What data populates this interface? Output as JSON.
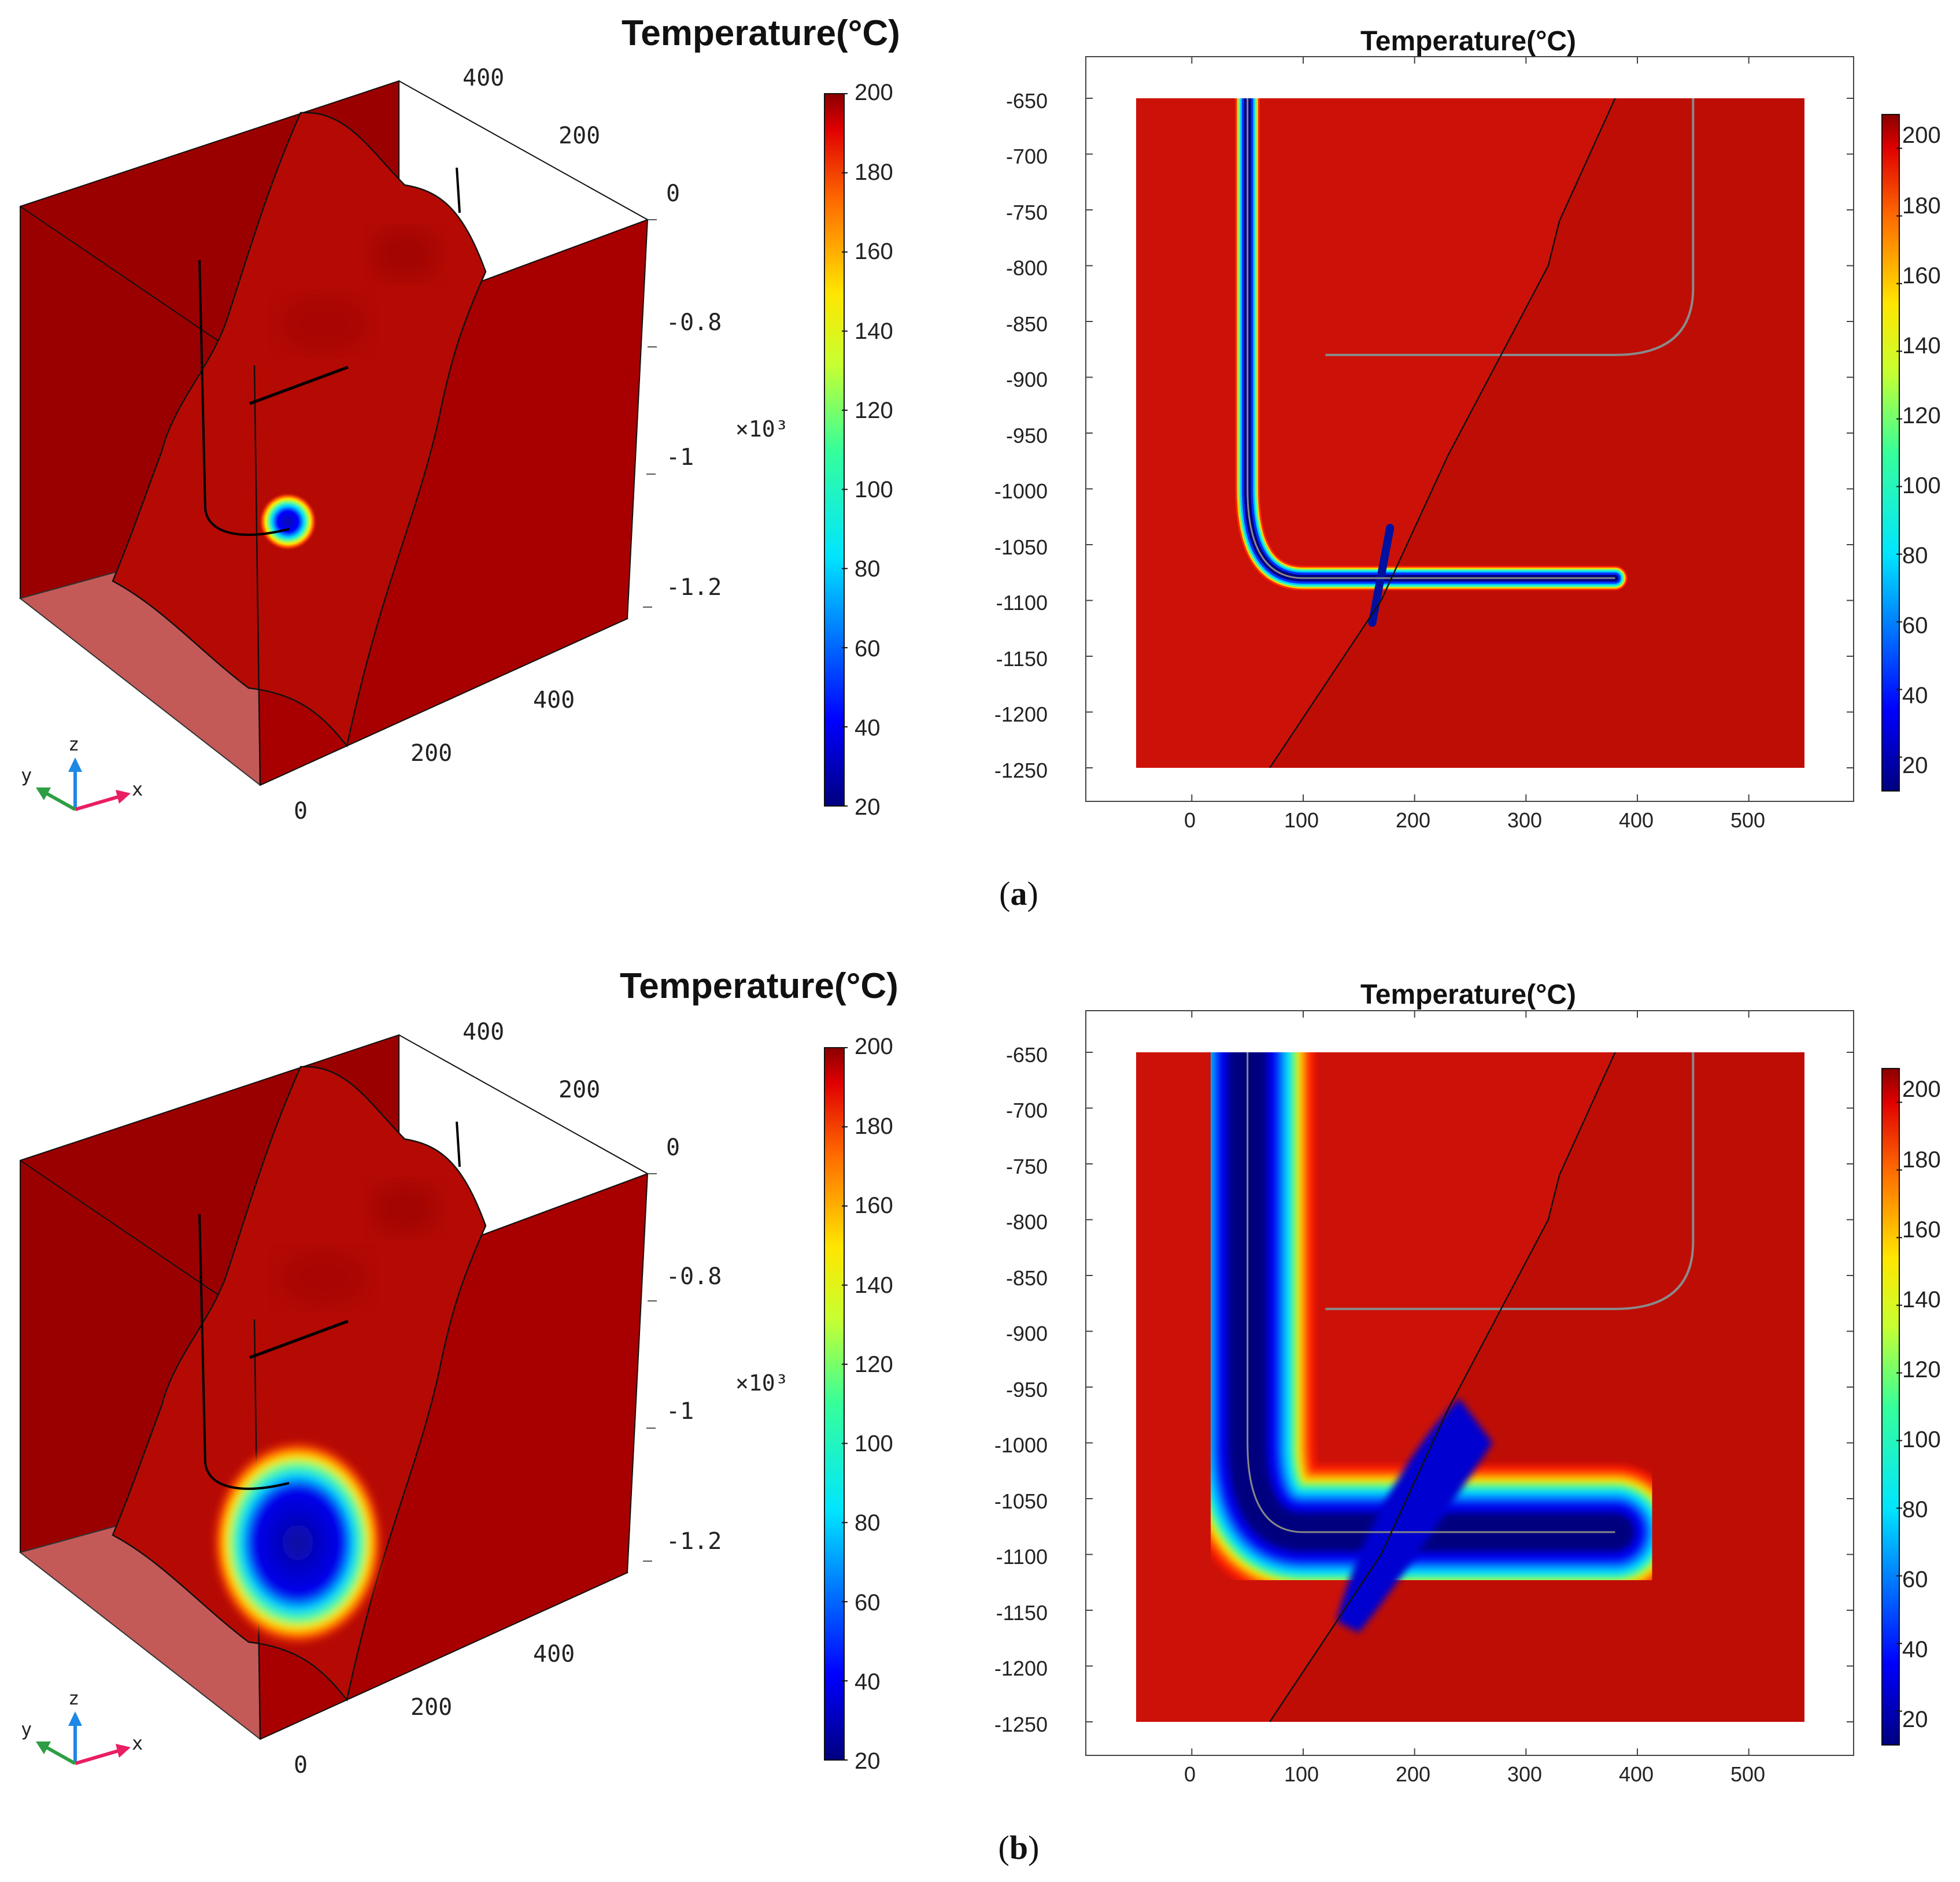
{
  "figure": {
    "panels": [
      {
        "id": "a",
        "caption_open": "(",
        "caption_letter": "a",
        "caption_close": ")",
        "view3d": {
          "title": "Temperature(°C)",
          "x_ticks": [
            "0",
            "200",
            "400"
          ],
          "y_ticks": [
            "0",
            "200",
            "400"
          ],
          "z_ticks": [
            "-0.8",
            "-1",
            "-1.2"
          ],
          "z_multiplier": "×10³",
          "axis_labels": {
            "x": "x",
            "y": "y",
            "z": "z"
          },
          "colorbar_ticks": [
            "200",
            "180",
            "160",
            "140",
            "120",
            "100",
            "80",
            "60",
            "40",
            "20"
          ]
        },
        "view2d": {
          "title": "Temperature(°C)",
          "x_ticks": [
            "0",
            "100",
            "200",
            "300",
            "400",
            "500"
          ],
          "y_ticks": [
            "-650",
            "-700",
            "-750",
            "-800",
            "-850",
            "-900",
            "-950",
            "-1000",
            "-1050",
            "-1100",
            "-1150",
            "-1200",
            "-1250"
          ],
          "colorbar_ticks": [
            "200",
            "180",
            "160",
            "140",
            "120",
            "100",
            "80",
            "60",
            "40",
            "20"
          ]
        }
      },
      {
        "id": "b",
        "caption_open": "(",
        "caption_letter": "b",
        "caption_close": ")",
        "view3d": {
          "title": "Temperature(°C)",
          "x_ticks": [
            "0",
            "200",
            "400"
          ],
          "y_ticks": [
            "0",
            "200",
            "400"
          ],
          "z_ticks": [
            "-0.8",
            "-1",
            "-1.2"
          ],
          "z_multiplier": "×10³",
          "axis_labels": {
            "x": "x",
            "y": "y",
            "z": "z"
          },
          "colorbar_ticks": [
            "200",
            "180",
            "160",
            "140",
            "120",
            "100",
            "80",
            "60",
            "40",
            "20"
          ]
        },
        "view2d": {
          "title": "Temperature(°C)",
          "x_ticks": [
            "0",
            "100",
            "200",
            "300",
            "400",
            "500"
          ],
          "y_ticks": [
            "-650",
            "-700",
            "-750",
            "-800",
            "-850",
            "-900",
            "-950",
            "-1000",
            "-1050",
            "-1100",
            "-1150",
            "-1200",
            "-1250"
          ],
          "colorbar_ticks": [
            "200",
            "180",
            "160",
            "140",
            "120",
            "100",
            "80",
            "60",
            "40",
            "20"
          ]
        }
      }
    ]
  },
  "colors": {
    "hot": "#cc1208",
    "dark_red": "#9b0000",
    "floor": "#c45a58",
    "cold": "#0a0a90",
    "cyan": "#00d5ff",
    "yellow": "#ffe600",
    "orange": "#ff8c00",
    "frame_bg": "#ffffff"
  },
  "chart_data": [
    {
      "type": "heatmap",
      "panel": "a",
      "title": "Temperature(°C)",
      "view": "3D block, x-y-z",
      "x_range": [
        0,
        500
      ],
      "y_range": [
        0,
        500
      ],
      "z_range": [
        -1.25,
        -0.65
      ],
      "z_multiplier": 1000,
      "colorbar_range": [
        20,
        200
      ],
      "colorbar_ticks": [
        200,
        180,
        160,
        140,
        120,
        100,
        80,
        60,
        40,
        20
      ],
      "cold_zone": {
        "shape": "small spot around horizontal well",
        "min_temp": 20
      }
    },
    {
      "type": "heatmap",
      "panel": "a",
      "title": "Temperature(°C)",
      "view": "2D section",
      "x_range": [
        -50,
        550
      ],
      "y_range": [
        -1250,
        -650
      ],
      "x_ticks": [
        0,
        100,
        200,
        300,
        400,
        500
      ],
      "y_ticks": [
        -650,
        -700,
        -750,
        -800,
        -850,
        -900,
        -950,
        -1000,
        -1050,
        -1100,
        -1150,
        -1200,
        -1250
      ],
      "colorbar_range": [
        10,
        210
      ],
      "colorbar_ticks": [
        200,
        180,
        160,
        140,
        120,
        100,
        80,
        60,
        40,
        20
      ],
      "background_temp": 200,
      "injection_well_path": [
        [
          50,
          -650
        ],
        [
          50,
          -1000
        ],
        [
          100,
          -1080
        ],
        [
          380,
          -1080
        ]
      ],
      "production_well_path": [
        [
          450,
          -650
        ],
        [
          450,
          -820
        ],
        [
          380,
          -880
        ],
        [
          120,
          -880
        ]
      ],
      "fracture_path": [
        [
          70,
          -1250
        ],
        [
          170,
          -1100
        ],
        [
          230,
          -970
        ],
        [
          320,
          -800
        ],
        [
          330,
          -760
        ],
        [
          380,
          -650
        ]
      ],
      "cold_zone_halfwidth": 10
    },
    {
      "type": "heatmap",
      "panel": "b",
      "title": "Temperature(°C)",
      "view": "3D block, x-y-z",
      "x_range": [
        0,
        500
      ],
      "y_range": [
        0,
        500
      ],
      "z_range": [
        -1.25,
        -0.65
      ],
      "z_multiplier": 1000,
      "colorbar_range": [
        20,
        200
      ],
      "colorbar_ticks": [
        200,
        180,
        160,
        140,
        120,
        100,
        80,
        60,
        40,
        20
      ],
      "cold_zone": {
        "shape": "large plume around horizontal well",
        "min_temp": 20
      }
    },
    {
      "type": "heatmap",
      "panel": "b",
      "title": "Temperature(°C)",
      "view": "2D section",
      "x_range": [
        -50,
        550
      ],
      "y_range": [
        -1250,
        -650
      ],
      "x_ticks": [
        0,
        100,
        200,
        300,
        400,
        500
      ],
      "y_ticks": [
        -650,
        -700,
        -750,
        -800,
        -850,
        -900,
        -950,
        -1000,
        -1050,
        -1100,
        -1150,
        -1200,
        -1250
      ],
      "colorbar_range": [
        10,
        210
      ],
      "colorbar_ticks": [
        200,
        180,
        160,
        140,
        120,
        100,
        80,
        60,
        40,
        20
      ],
      "background_temp": 200,
      "injection_well_path": [
        [
          50,
          -650
        ],
        [
          50,
          -1000
        ],
        [
          100,
          -1080
        ],
        [
          380,
          -1080
        ]
      ],
      "production_well_path": [
        [
          450,
          -650
        ],
        [
          450,
          -820
        ],
        [
          380,
          -880
        ],
        [
          120,
          -880
        ]
      ],
      "fracture_path": [
        [
          70,
          -1250
        ],
        [
          170,
          -1100
        ],
        [
          230,
          -970
        ],
        [
          320,
          -800
        ],
        [
          330,
          -760
        ],
        [
          380,
          -650
        ]
      ],
      "cold_zone_halfwidth": 50
    }
  ]
}
